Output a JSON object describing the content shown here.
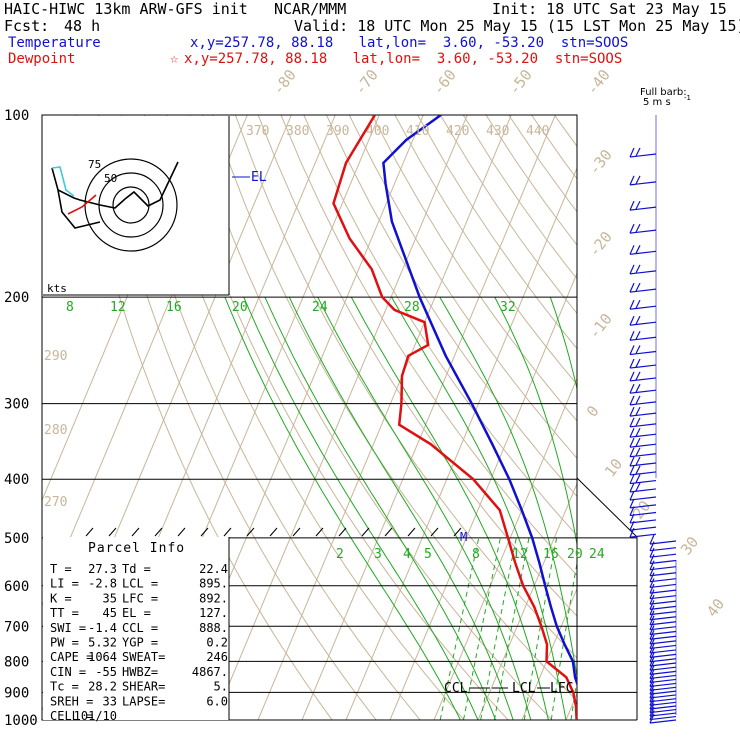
{
  "header": {
    "model": "HAIC-HIWC 13km ARW-GFS init",
    "center": "NCAR/MMM",
    "init": "Init: 18 UTC Sat 23 May 15",
    "fcst_label": "Fcst:",
    "fcst_value": "48 h",
    "valid": "Valid: 18 UTC Mon 25 May 15 (15 LST Mon 25 May 15)",
    "temp_label": "Temperature",
    "temp_loc": "x,y=257.78, 88.18   lat,lon=  3.60, -53.20  stn=SOOS",
    "dew_label": "Dewpoint",
    "dew_loc": "x,y=257.78, 88.18   lat,lon=  3.60, -53.20  stn=SOOS"
  },
  "chart_data": {
    "type": "line",
    "subtype": "skew-T log-P sounding",
    "y_axis": {
      "label": "",
      "scale": "log",
      "ticks": [
        100,
        200,
        300,
        400,
        500,
        600,
        700,
        800,
        900,
        1000
      ],
      "range": [
        1000,
        100
      ]
    },
    "isotherm_labels": [
      "-80",
      "-70",
      "-60",
      "-50",
      "-40",
      "-30",
      "-20",
      "-10",
      "0",
      "10",
      "20",
      "30",
      "40"
    ],
    "theta_e_labels": [
      "370",
      "380",
      "390",
      "400",
      "410",
      "420",
      "430",
      "440"
    ],
    "theta_labels": [
      "290",
      "280",
      "270"
    ],
    "mixing_ratio_labels_top": [
      "8",
      "12",
      "16",
      "20",
      "24",
      "28",
      "32"
    ],
    "mixing_ratio_labels_low": [
      "2",
      "3",
      "4",
      "5",
      "8",
      "12",
      "16",
      "20",
      "24"
    ],
    "series": [
      {
        "name": "Temperature",
        "color": "#1010d0",
        "points": [
          [
            1000,
            27.3
          ],
          [
            950,
            24.0
          ],
          [
            925,
            22.3
          ],
          [
            900,
            20.6
          ],
          [
            850,
            18.0
          ],
          [
            800,
            16.0
          ],
          [
            750,
            12.5
          ],
          [
            700,
            9.0
          ],
          [
            650,
            5.8
          ],
          [
            600,
            2.5
          ],
          [
            550,
            -1.0
          ],
          [
            500,
            -5.0
          ],
          [
            450,
            -10.0
          ],
          [
            400,
            -15.8
          ],
          [
            350,
            -23.0
          ],
          [
            300,
            -31.5
          ],
          [
            250,
            -42.0
          ],
          [
            200,
            -53.5
          ],
          [
            150,
            -67.0
          ],
          [
            130,
            -72.0
          ],
          [
            120,
            -74.5
          ],
          [
            110,
            -71.5
          ],
          [
            100,
            -66.0
          ]
        ]
      },
      {
        "name": "Dewpoint",
        "color": "#e01010",
        "points": [
          [
            1000,
            22.4
          ],
          [
            950,
            21.0
          ],
          [
            925,
            20.0
          ],
          [
            900,
            19.0
          ],
          [
            850,
            16.0
          ],
          [
            800,
            10.0
          ],
          [
            750,
            8.5
          ],
          [
            700,
            5.5
          ],
          [
            650,
            2.0
          ],
          [
            600,
            -2.5
          ],
          [
            550,
            -6.5
          ],
          [
            500,
            -10.5
          ],
          [
            450,
            -15.0
          ],
          [
            400,
            -24.0
          ],
          [
            350,
            -37.0
          ],
          [
            325,
            -46.0
          ],
          [
            300,
            -47.5
          ],
          [
            270,
            -50.0
          ],
          [
            250,
            -50.5
          ],
          [
            240,
            -47.0
          ],
          [
            220,
            -50.0
          ],
          [
            210,
            -58.0
          ],
          [
            200,
            -62.0
          ],
          [
            180,
            -67.0
          ],
          [
            160,
            -75.0
          ],
          [
            140,
            -82.0
          ],
          [
            120,
            -83.0
          ],
          [
            100,
            -81.0
          ]
        ]
      }
    ],
    "annotations": [
      "EL",
      "CCL",
      "LCL",
      "LFC",
      "M"
    ],
    "hodograph": {
      "unit_label": "kts",
      "ring_labels": [
        "75",
        "50"
      ]
    },
    "wind_scale": {
      "title": "Full barb:",
      "value": "5 m s",
      "exponent": "-1"
    }
  },
  "parcel_info": {
    "title": "Parcel Info",
    "rows": [
      [
        "T  =",
        "27.3",
        "Td =",
        "22.4"
      ],
      [
        "LI =",
        "-2.8",
        "LCL =",
        "895."
      ],
      [
        "K  =",
        "35",
        "LFC =",
        "892."
      ],
      [
        "TT =",
        "45",
        "EL  =",
        "127."
      ],
      [
        "SWI =",
        "-1.4",
        "CCL =",
        "888."
      ],
      [
        "PW =",
        "5.32",
        "YGP =",
        "0.2"
      ],
      [
        "CAPE =",
        "1064",
        "SWEAT=",
        "246"
      ],
      [
        "CIN =",
        "-55",
        "HWBZ=",
        "4867."
      ],
      [
        "Tc =",
        "28.2",
        "SHEAR=",
        "5."
      ],
      [
        "SREH =",
        "33",
        "LAPSE=",
        "6.0"
      ],
      [
        "CELL =",
        "101/10",
        "",
        ""
      ]
    ]
  }
}
